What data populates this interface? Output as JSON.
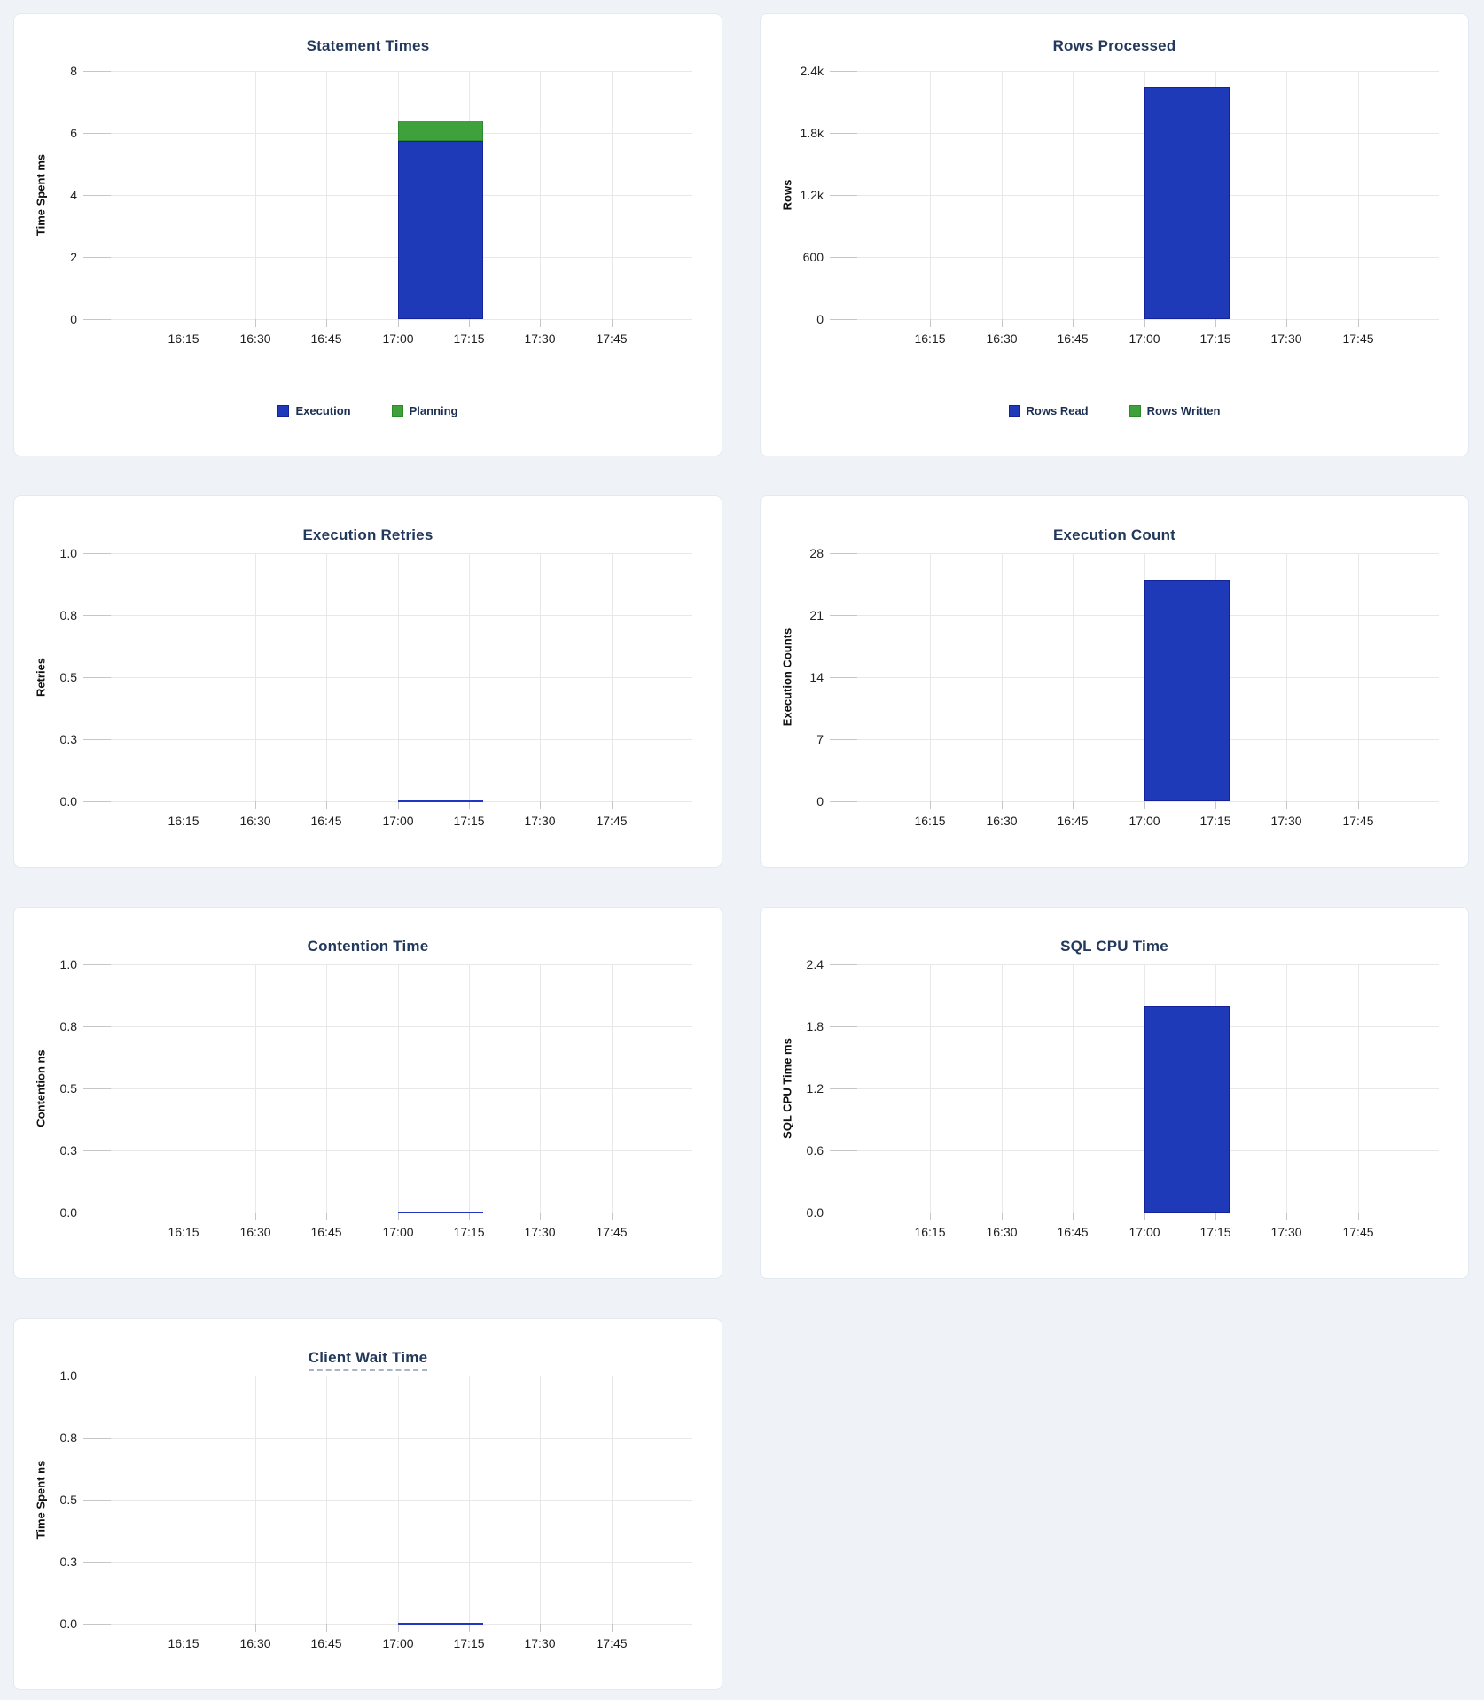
{
  "page": {
    "background": "#eff3f7"
  },
  "colors": {
    "title_text": "#23395b",
    "legend_text": "#1b2f52",
    "bar_blue": "#1e3ab8",
    "bar_blue_border": "#14229b",
    "bar_green": "#3fa13b",
    "bar_green_border": "#2c8a2c",
    "zero_line_blue": "#2036c0"
  },
  "x_axis": {
    "domain_start": "15:57",
    "domain_end": "18:02",
    "tick_labels": [
      "16:15",
      "16:30",
      "16:45",
      "17:00",
      "17:15",
      "17:30",
      "17:45"
    ]
  },
  "chart_data": [
    {
      "id": "statement-times",
      "type": "bar",
      "title": "Statement Times",
      "title_underlined": false,
      "ylabel": "Time Spent ms",
      "ylim": [
        0,
        8
      ],
      "ymax": 8,
      "ytick_labels": [
        "8",
        "6",
        "4",
        "2",
        "0"
      ],
      "x_window": [
        "17:00",
        "17:18"
      ],
      "series": [
        {
          "name": "Execution",
          "kind": "bar",
          "color": "blue",
          "from": 0,
          "to": 5.75
        },
        {
          "name": "Planning",
          "kind": "bar",
          "color": "green",
          "from": 5.75,
          "to": 6.4
        }
      ],
      "legend": [
        {
          "label": "Execution",
          "color": "blue"
        },
        {
          "label": "Planning",
          "color": "green"
        }
      ]
    },
    {
      "id": "rows-processed",
      "type": "bar",
      "title": "Rows Processed",
      "title_underlined": false,
      "ylabel": "Rows",
      "ylim": [
        0,
        2400
      ],
      "ymax": 2400,
      "ytick_labels": [
        "2.4k",
        "1.8k",
        "1.2k",
        "600",
        "0"
      ],
      "x_window": [
        "17:00",
        "17:18"
      ],
      "series": [
        {
          "name": "Rows Read",
          "kind": "bar",
          "color": "blue",
          "from": 0,
          "to": 2250
        },
        {
          "name": "Rows Written",
          "kind": "bar",
          "color": "green",
          "from": 2250,
          "to": 2250
        }
      ],
      "legend": [
        {
          "label": "Rows Read",
          "color": "blue"
        },
        {
          "label": "Rows Written",
          "color": "green"
        }
      ]
    },
    {
      "id": "execution-retries",
      "type": "line",
      "title": "Execution Retries",
      "title_underlined": false,
      "ylabel": "Retries",
      "ylim": [
        0,
        1
      ],
      "ymax": 1,
      "ytick_labels": [
        "1.0",
        "0.8",
        "0.5",
        "0.3",
        "0.0"
      ],
      "x_window": [
        "17:00",
        "17:18"
      ],
      "series": [
        {
          "name": "Retries",
          "kind": "line",
          "color": "blue",
          "value": 0
        }
      ],
      "legend": null
    },
    {
      "id": "execution-count",
      "type": "bar",
      "title": "Execution Count",
      "title_underlined": false,
      "ylabel": "Execution Counts",
      "ylim": [
        0,
        28
      ],
      "ymax": 28,
      "ytick_labels": [
        "28",
        "21",
        "14",
        "7",
        "0"
      ],
      "x_window": [
        "17:00",
        "17:18"
      ],
      "series": [
        {
          "name": "Execution Count",
          "kind": "bar",
          "color": "blue",
          "from": 0,
          "to": 25
        }
      ],
      "legend": null
    },
    {
      "id": "contention-time",
      "type": "line",
      "title": "Contention Time",
      "title_underlined": false,
      "ylabel": "Contention ns",
      "ylim": [
        0,
        1
      ],
      "ymax": 1,
      "ytick_labels": [
        "1.0",
        "0.8",
        "0.5",
        "0.3",
        "0.0"
      ],
      "x_window": [
        "17:00",
        "17:18"
      ],
      "series": [
        {
          "name": "Contention",
          "kind": "line",
          "color": "blue",
          "value": 0
        }
      ],
      "legend": null
    },
    {
      "id": "sql-cpu-time",
      "type": "bar",
      "title": "SQL CPU Time",
      "title_underlined": false,
      "ylabel": "SQL CPU Time ms",
      "ylim": [
        0,
        2.4
      ],
      "ymax": 2.4,
      "ytick_labels": [
        "2.4",
        "1.8",
        "1.2",
        "0.6",
        "0.0"
      ],
      "x_window": [
        "17:00",
        "17:18"
      ],
      "series": [
        {
          "name": "SQL CPU Time",
          "kind": "bar",
          "color": "blue",
          "from": 0,
          "to": 2.0
        }
      ],
      "legend": null
    },
    {
      "id": "client-wait-time",
      "type": "line",
      "title": "Client Wait Time",
      "title_underlined": true,
      "ylabel": "Time Spent ns",
      "ylim": [
        0,
        1
      ],
      "ymax": 1,
      "ytick_labels": [
        "1.0",
        "0.8",
        "0.5",
        "0.3",
        "0.0"
      ],
      "x_window": [
        "17:00",
        "17:18"
      ],
      "series": [
        {
          "name": "Client Wait",
          "kind": "line",
          "color": "blue",
          "value": 0
        }
      ],
      "legend": null
    }
  ]
}
